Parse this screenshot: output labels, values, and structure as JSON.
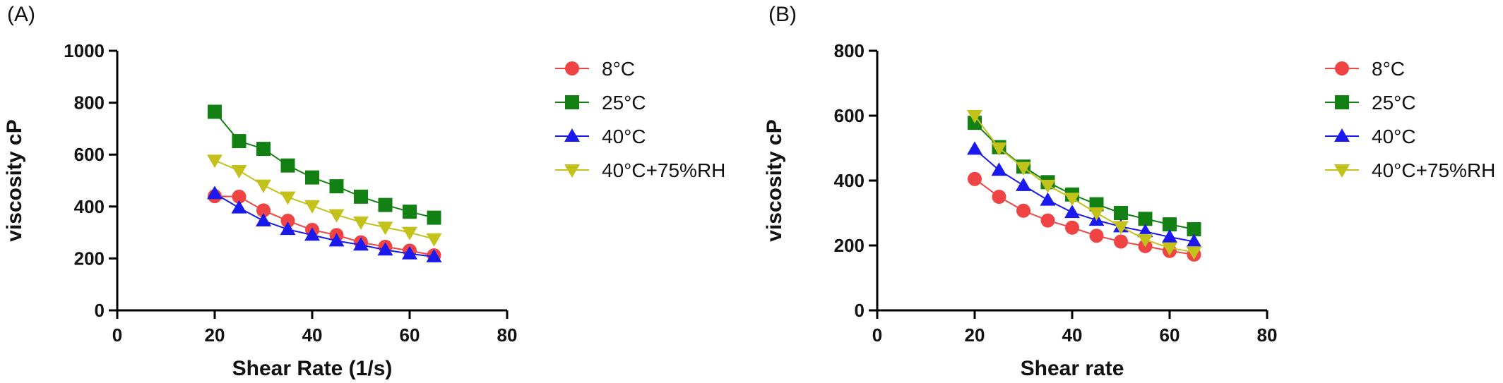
{
  "chart_data": [
    {
      "type": "line",
      "panel_label": "(A)",
      "xlabel": "Shear Rate (1/s)",
      "ylabel": "viscosity cP",
      "xlim": [
        0,
        80
      ],
      "ylim": [
        0,
        1000
      ],
      "xticks": [
        0,
        20,
        40,
        60,
        80
      ],
      "yticks": [
        0,
        200,
        400,
        600,
        800,
        1000
      ],
      "legend_position": "right",
      "x": [
        20,
        25,
        30,
        35,
        40,
        45,
        50,
        55,
        60,
        65
      ],
      "series": [
        {
          "name": "8°C",
          "color": "#f04444",
          "marker": "circle",
          "values": [
            440,
            438,
            385,
            345,
            310,
            290,
            262,
            245,
            230,
            212
          ]
        },
        {
          "name": "25°C",
          "color": "#138013",
          "marker": "square",
          "values": [
            765,
            652,
            622,
            558,
            512,
            478,
            438,
            406,
            380,
            357
          ]
        },
        {
          "name": "40°C",
          "color": "#1a1aee",
          "marker": "triangle-up",
          "values": [
            450,
            395,
            345,
            312,
            290,
            268,
            252,
            233,
            218,
            207
          ]
        },
        {
          "name": "40°C+75%RH",
          "color": "#c2c21a",
          "marker": "triangle-down",
          "values": [
            578,
            538,
            482,
            436,
            403,
            368,
            340,
            320,
            300,
            275
          ]
        }
      ]
    },
    {
      "type": "line",
      "panel_label": "(B)",
      "xlabel": "Shear rate",
      "ylabel": "viscosity cP",
      "xlim": [
        0,
        80
      ],
      "ylim": [
        0,
        800
      ],
      "xticks": [
        0,
        20,
        40,
        60,
        80
      ],
      "yticks": [
        0,
        200,
        400,
        600,
        800
      ],
      "legend_position": "right",
      "x": [
        20,
        25,
        30,
        35,
        40,
        45,
        50,
        55,
        60,
        65
      ],
      "series": [
        {
          "name": "8°C",
          "color": "#f04444",
          "marker": "circle",
          "values": [
            405,
            350,
            307,
            277,
            255,
            230,
            212,
            198,
            183,
            172
          ]
        },
        {
          "name": "25°C",
          "color": "#138013",
          "marker": "square",
          "values": [
            578,
            503,
            443,
            395,
            357,
            327,
            300,
            282,
            265,
            250
          ]
        },
        {
          "name": "40°C",
          "color": "#1a1aee",
          "marker": "triangle-up",
          "values": [
            497,
            432,
            385,
            340,
            302,
            278,
            258,
            243,
            226,
            212
          ]
        },
        {
          "name": "40°C+75%RH",
          "color": "#c2c21a",
          "marker": "triangle-down",
          "values": [
            600,
            500,
            440,
            385,
            345,
            300,
            258,
            218,
            192,
            180
          ]
        }
      ]
    }
  ]
}
